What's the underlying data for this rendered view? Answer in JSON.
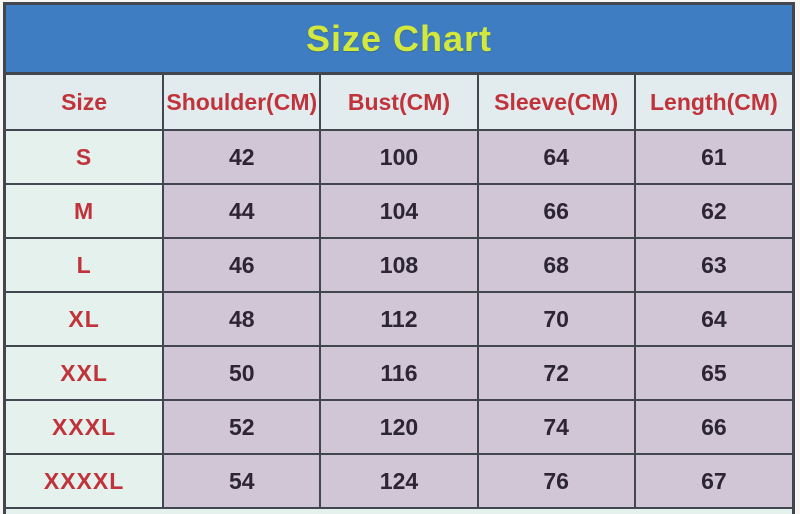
{
  "title": "Size Chart",
  "colors": {
    "title_bg": "#3e7dc1",
    "title_text": "#d3e83c",
    "header_bg": "#e2ecef",
    "header_text": "#c1333b",
    "size_column_bg": "#e4f1ec",
    "size_label_text": "#c1333b",
    "value_cell_bg": "#d1c6d5",
    "value_text": "#2c2534",
    "grid_border": "#42464e",
    "page_bg": "#f7f6f3"
  },
  "chart_data": {
    "type": "table",
    "title": "Size Chart",
    "columns": [
      "Size",
      "Shoulder(CM)",
      "Bust(CM)",
      "Sleeve(CM)",
      "Length(CM)"
    ],
    "rows": [
      [
        "S",
        42,
        100,
        64,
        61
      ],
      [
        "M",
        44,
        104,
        66,
        62
      ],
      [
        "L",
        46,
        108,
        68,
        63
      ],
      [
        "XL",
        48,
        112,
        70,
        64
      ],
      [
        "XXL",
        50,
        116,
        72,
        65
      ],
      [
        "XXXL",
        52,
        120,
        74,
        66
      ],
      [
        "XXXXL",
        54,
        124,
        76,
        67
      ]
    ],
    "layout": {
      "grid": true,
      "title_position": "top",
      "units": "CM"
    }
  }
}
